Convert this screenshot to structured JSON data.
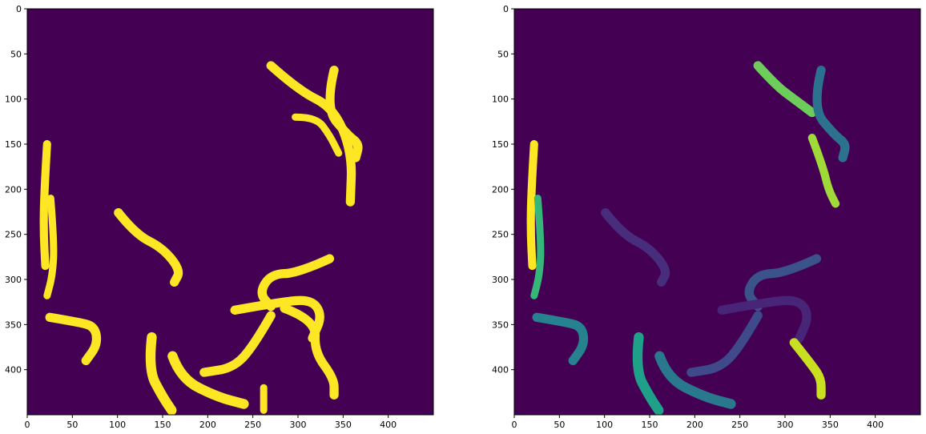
{
  "colors": {
    "background": "#440154",
    "mask": "#fde725",
    "tick": "#000000"
  },
  "panels": [
    {
      "name": "binary-mask",
      "x_ticks": [
        "0",
        "50",
        "100",
        "150",
        "200",
        "250",
        "300",
        "350",
        "400"
      ],
      "y_ticks": [
        "0",
        "50",
        "100",
        "150",
        "200",
        "250",
        "300",
        "350",
        "400"
      ],
      "worm_color_source": "single",
      "worms": [
        {
          "color": "#fde725",
          "points": [
            [
              22,
              150
            ],
            [
              19,
              200
            ],
            [
              18,
              245
            ],
            [
              20,
              285
            ]
          ],
          "width": 9
        },
        {
          "color": "#fde725",
          "points": [
            [
              26,
              210
            ],
            [
              30,
              260
            ],
            [
              28,
              295
            ],
            [
              22,
              318
            ]
          ],
          "width": 8
        },
        {
          "color": "#fde725",
          "points": [
            [
              25,
              342
            ],
            [
              55,
              347
            ],
            [
              75,
              352
            ],
            [
              78,
              372
            ],
            [
              65,
              390
            ]
          ],
          "width": 10
        },
        {
          "color": "#fde725",
          "points": [
            [
              101,
              226
            ],
            [
              120,
              250
            ],
            [
              150,
              265
            ],
            [
              170,
              290
            ],
            [
              163,
              303
            ]
          ],
          "width": 10
        },
        {
          "color": "#fde725",
          "points": [
            [
              270,
              63
            ],
            [
              300,
              90
            ],
            [
              340,
              110
            ],
            [
              360,
              160
            ],
            [
              358,
              214
            ]
          ],
          "width": 10
        },
        {
          "color": "#fde725",
          "points": [
            [
              340,
              68
            ],
            [
              330,
              110
            ],
            [
              355,
              140
            ],
            [
              368,
              150
            ],
            [
              364,
              165
            ]
          ],
          "width": 10
        },
        {
          "color": "#fde725",
          "points": [
            [
              297,
              120
            ],
            [
              320,
              120
            ],
            [
              335,
              140
            ],
            [
              345,
              160
            ]
          ],
          "width": 8
        },
        {
          "color": "#fde725",
          "points": [
            [
              335,
              277
            ],
            [
              300,
              293
            ],
            [
              270,
              294
            ],
            [
              257,
              315
            ],
            [
              270,
              330
            ]
          ],
          "width": 10
        },
        {
          "color": "#fde725",
          "points": [
            [
              230,
              334
            ],
            [
              280,
              325
            ],
            [
              315,
              322
            ],
            [
              327,
              340
            ],
            [
              316,
              365
            ]
          ],
          "width": 10
        },
        {
          "color": "#fde725",
          "points": [
            [
              285,
              332
            ],
            [
              320,
              345
            ],
            [
              318,
              380
            ],
            [
              340,
              410
            ],
            [
              340,
              428
            ]
          ],
          "width": 10
        },
        {
          "color": "#fde725",
          "points": [
            [
              270,
              340
            ],
            [
              250,
              375
            ],
            [
              228,
              398
            ],
            [
              196,
              403
            ]
          ],
          "width": 10
        },
        {
          "color": "#fde725",
          "points": [
            [
              138,
              364
            ],
            [
              134,
              400
            ],
            [
              150,
              430
            ],
            [
              160,
              445
            ]
          ],
          "width": 11
        },
        {
          "color": "#fde725",
          "points": [
            [
              161,
              385
            ],
            [
              170,
              410
            ],
            [
              210,
              430
            ],
            [
              240,
              438
            ]
          ],
          "width": 11
        },
        {
          "color": "#fde725",
          "points": [
            [
              262,
              420
            ],
            [
              262,
              445
            ]
          ],
          "width": 8
        }
      ]
    },
    {
      "name": "instance-labels",
      "x_ticks": [
        "0",
        "50",
        "100",
        "150",
        "200",
        "250",
        "300",
        "350",
        "400"
      ],
      "y_ticks": [
        "0",
        "50",
        "100",
        "150",
        "200",
        "250",
        "300",
        "350",
        "400"
      ],
      "worm_color_source": "instance",
      "worms": [
        {
          "color": "#fde725",
          "points": [
            [
              22,
              150
            ],
            [
              19,
              200
            ],
            [
              18,
              245
            ],
            [
              20,
              285
            ]
          ],
          "width": 9
        },
        {
          "color": "#35b779",
          "points": [
            [
              26,
              210
            ],
            [
              30,
              260
            ],
            [
              28,
              295
            ],
            [
              22,
              318
            ]
          ],
          "width": 8
        },
        {
          "color": "#26828e",
          "points": [
            [
              25,
              342
            ],
            [
              55,
              347
            ],
            [
              75,
              352
            ],
            [
              78,
              372
            ],
            [
              65,
              390
            ]
          ],
          "width": 10
        },
        {
          "color": "#472d7b",
          "points": [
            [
              101,
              226
            ],
            [
              120,
              250
            ],
            [
              150,
              265
            ],
            [
              170,
              290
            ],
            [
              163,
              303
            ]
          ],
          "width": 10
        },
        {
          "color": "#6ccd5a",
          "points": [
            [
              270,
              63
            ],
            [
              290,
              85
            ],
            [
              310,
              100
            ],
            [
              330,
              115
            ]
          ],
          "width": 10
        },
        {
          "color": "#2c728e",
          "points": [
            [
              340,
              68
            ],
            [
              330,
              110
            ],
            [
              355,
              140
            ],
            [
              368,
              150
            ],
            [
              364,
              165
            ]
          ],
          "width": 10
        },
        {
          "color": "#a0da39",
          "points": [
            [
              330,
              143
            ],
            [
              342,
              175
            ],
            [
              348,
              200
            ],
            [
              356,
              216
            ]
          ],
          "width": 9
        },
        {
          "color": "#3b528b",
          "points": [
            [
              335,
              277
            ],
            [
              300,
              293
            ],
            [
              270,
              294
            ],
            [
              257,
              315
            ],
            [
              270,
              330
            ]
          ],
          "width": 10
        },
        {
          "color": "#482576",
          "points": [
            [
              230,
              334
            ],
            [
              280,
              325
            ],
            [
              315,
              322
            ],
            [
              327,
              340
            ],
            [
              316,
              365
            ]
          ],
          "width": 10
        },
        {
          "color": "#c8e020",
          "points": [
            [
              310,
              370
            ],
            [
              330,
              395
            ],
            [
              340,
              410
            ],
            [
              340,
              428
            ]
          ],
          "width": 10
        },
        {
          "color": "#3e4a89",
          "points": [
            [
              270,
              340
            ],
            [
              250,
              375
            ],
            [
              228,
              398
            ],
            [
              196,
              403
            ]
          ],
          "width": 10
        },
        {
          "color": "#1fa088",
          "points": [
            [
              138,
              364
            ],
            [
              134,
              400
            ],
            [
              150,
              430
            ],
            [
              160,
              445
            ]
          ],
          "width": 11
        },
        {
          "color": "#2a788e",
          "points": [
            [
              161,
              385
            ],
            [
              170,
              410
            ],
            [
              210,
              430
            ],
            [
              240,
              438
            ]
          ],
          "width": 11
        }
      ]
    }
  ]
}
